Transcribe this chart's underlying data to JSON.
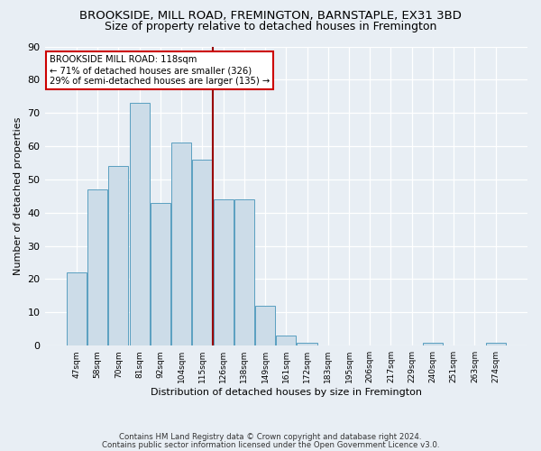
{
  "title": "BROOKSIDE, MILL ROAD, FREMINGTON, BARNSTAPLE, EX31 3BD",
  "subtitle": "Size of property relative to detached houses in Fremington",
  "xlabel": "Distribution of detached houses by size in Fremington",
  "ylabel": "Number of detached properties",
  "footnote1": "Contains HM Land Registry data © Crown copyright and database right 2024.",
  "footnote2": "Contains public sector information licensed under the Open Government Licence v3.0.",
  "bar_labels": [
    "47sqm",
    "58sqm",
    "70sqm",
    "81sqm",
    "92sqm",
    "104sqm",
    "115sqm",
    "126sqm",
    "138sqm",
    "149sqm",
    "161sqm",
    "172sqm",
    "183sqm",
    "195sqm",
    "206sqm",
    "217sqm",
    "229sqm",
    "240sqm",
    "251sqm",
    "263sqm",
    "274sqm"
  ],
  "bar_values": [
    22,
    47,
    54,
    73,
    43,
    61,
    56,
    44,
    44,
    12,
    3,
    1,
    0,
    0,
    0,
    0,
    0,
    1,
    0,
    0,
    1
  ],
  "bar_color": "#ccdce8",
  "bar_edgecolor": "#5a9fc0",
  "vline_color": "#990000",
  "annotation_title": "BROOKSIDE MILL ROAD: 118sqm",
  "annotation_line1": "← 71% of detached houses are smaller (326)",
  "annotation_line2": "29% of semi-detached houses are larger (135) →",
  "annotation_box_facecolor": "#ffffff",
  "annotation_box_edgecolor": "#cc0000",
  "ylim": [
    0,
    90
  ],
  "yticks": [
    0,
    10,
    20,
    30,
    40,
    50,
    60,
    70,
    80,
    90
  ],
  "background_color": "#e8eef4",
  "grid_color": "#ffffff",
  "title_fontsize": 9.5,
  "subtitle_fontsize": 9
}
